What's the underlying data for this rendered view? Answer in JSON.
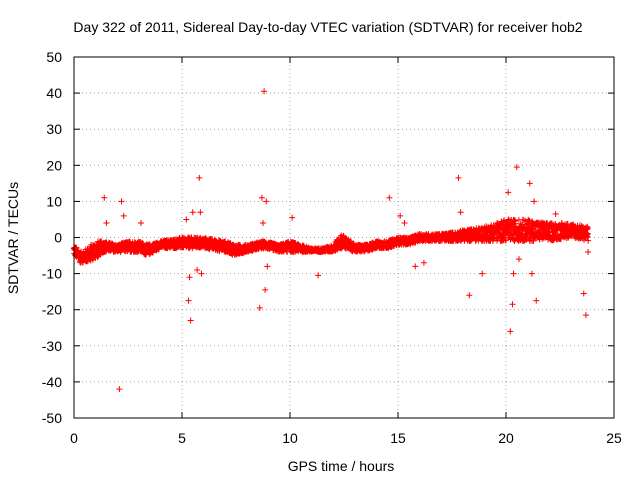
{
  "chart_data": {
    "type": "scatter",
    "title": "Day 322 of 2011, Sidereal Day-to-day VTEC variation (SDTVAR) for receiver hob2",
    "xlabel": "GPS time / hours",
    "ylabel": "SDTVAR / TECUs",
    "xlim": [
      0,
      25
    ],
    "ylim": [
      -50,
      50
    ],
    "xticks": [
      0,
      5,
      10,
      15,
      20,
      25
    ],
    "yticks": [
      -50,
      -40,
      -30,
      -20,
      -10,
      0,
      10,
      20,
      30,
      40,
      50
    ],
    "grid": true,
    "marker": "+",
    "color": "#ff0000",
    "band": {
      "x": [
        0.0,
        0.3,
        0.6,
        1.0,
        1.4,
        2.0,
        2.5,
        3.0,
        3.4,
        4.0,
        5.0,
        6.0,
        7.0,
        7.5,
        8.0,
        8.8,
        9.5,
        10.0,
        10.5,
        11.0,
        11.5,
        12.0,
        12.4,
        13.0,
        13.5,
        14.0,
        14.5,
        15.0,
        15.5,
        16.0,
        17.0,
        18.0,
        19.0,
        19.5,
        20.0,
        20.5,
        21.0,
        22.0,
        23.0,
        23.8
      ],
      "low": [
        -5,
        -7,
        -7,
        -6,
        -4,
        -4,
        -4,
        -4,
        -5,
        -3,
        -3,
        -3,
        -4,
        -5,
        -4,
        -3,
        -4,
        -4,
        -4,
        -4,
        -4,
        -4,
        -3,
        -4,
        -4,
        -3,
        -3,
        -2,
        -2,
        -1,
        -1,
        -1,
        -1,
        -1,
        -1,
        -1,
        -1,
        -1,
        0,
        -1
      ],
      "high": [
        -2,
        -4,
        -3,
        -1,
        -1,
        -2,
        -1,
        -1,
        -2,
        -1,
        0,
        0,
        -1,
        -2,
        -2,
        -1,
        -2,
        -1,
        -2,
        -3,
        -3,
        -2,
        1,
        -2,
        -2,
        -1,
        -1,
        0,
        0,
        1,
        1,
        2,
        3,
        4,
        5,
        5,
        5,
        4,
        4,
        3
      ]
    },
    "outliers": [
      {
        "x": 1.4,
        "y": 11
      },
      {
        "x": 1.5,
        "y": 4
      },
      {
        "x": 2.1,
        "y": -42
      },
      {
        "x": 2.2,
        "y": 10
      },
      {
        "x": 2.3,
        "y": 6
      },
      {
        "x": 3.1,
        "y": 4
      },
      {
        "x": 5.2,
        "y": 5
      },
      {
        "x": 5.3,
        "y": -17.5
      },
      {
        "x": 5.35,
        "y": -11
      },
      {
        "x": 5.4,
        "y": -23
      },
      {
        "x": 5.5,
        "y": 7
      },
      {
        "x": 5.7,
        "y": -9
      },
      {
        "x": 5.8,
        "y": 16.5
      },
      {
        "x": 5.85,
        "y": 7
      },
      {
        "x": 5.9,
        "y": -10
      },
      {
        "x": 8.6,
        "y": -19.5
      },
      {
        "x": 8.7,
        "y": 11
      },
      {
        "x": 8.75,
        "y": 4
      },
      {
        "x": 8.8,
        "y": 40.5
      },
      {
        "x": 8.85,
        "y": -14.5
      },
      {
        "x": 8.9,
        "y": 10
      },
      {
        "x": 8.95,
        "y": -8
      },
      {
        "x": 10.1,
        "y": 5.5
      },
      {
        "x": 11.3,
        "y": -10.5
      },
      {
        "x": 14.6,
        "y": 11
      },
      {
        "x": 15.1,
        "y": 6
      },
      {
        "x": 15.3,
        "y": 4
      },
      {
        "x": 15.8,
        "y": -8
      },
      {
        "x": 16.2,
        "y": -7
      },
      {
        "x": 17.8,
        "y": 16.5
      },
      {
        "x": 17.9,
        "y": 7
      },
      {
        "x": 18.3,
        "y": -16
      },
      {
        "x": 18.9,
        "y": -10
      },
      {
        "x": 20.1,
        "y": 12.5
      },
      {
        "x": 20.2,
        "y": -26
      },
      {
        "x": 20.3,
        "y": -18.5
      },
      {
        "x": 20.35,
        "y": -10
      },
      {
        "x": 20.5,
        "y": 19.5
      },
      {
        "x": 20.6,
        "y": -6
      },
      {
        "x": 21.1,
        "y": 15
      },
      {
        "x": 21.3,
        "y": 10
      },
      {
        "x": 21.4,
        "y": -17.5
      },
      {
        "x": 21.2,
        "y": -10
      },
      {
        "x": 22.3,
        "y": 6.5
      },
      {
        "x": 23.6,
        "y": -15.5
      },
      {
        "x": 23.7,
        "y": -21.5
      },
      {
        "x": 23.8,
        "y": -4
      }
    ]
  }
}
